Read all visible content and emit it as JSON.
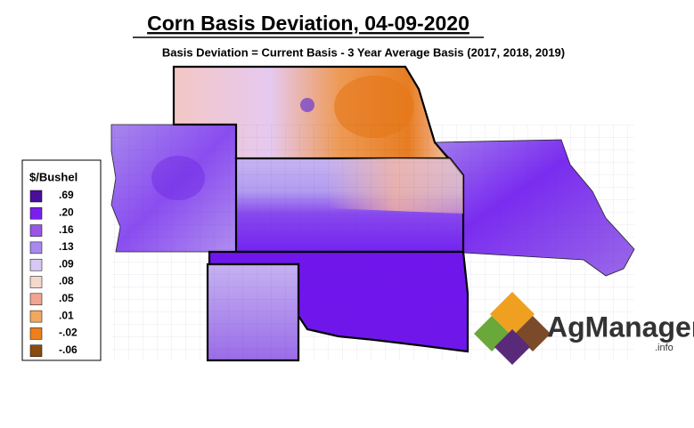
{
  "title": "Corn Basis Deviation, 04-09-2020",
  "subtitle": "Basis Deviation = Current Basis - 3 Year Average Basis (2017, 2018, 2019)",
  "legend": {
    "title": "$/Bushel",
    "items": [
      {
        "label": ".69",
        "color": "#4a0d9c"
      },
      {
        "label": ".20",
        "color": "#7a1ff0"
      },
      {
        "label": ".16",
        "color": "#9a55e8"
      },
      {
        "label": ".13",
        "color": "#a989ee"
      },
      {
        "label": ".09",
        "color": "#d7c8f4"
      },
      {
        "label": ".08",
        "color": "#f4d8cc"
      },
      {
        "label": ".05",
        "color": "#f2a493"
      },
      {
        "label": ".01",
        "color": "#f3a860"
      },
      {
        "label": "-.02",
        "color": "#ee7f1c"
      },
      {
        "label": "-.06",
        "color": "#8a4a10"
      }
    ]
  },
  "logo": {
    "name": "AgManager",
    "suffix": ".info"
  }
}
